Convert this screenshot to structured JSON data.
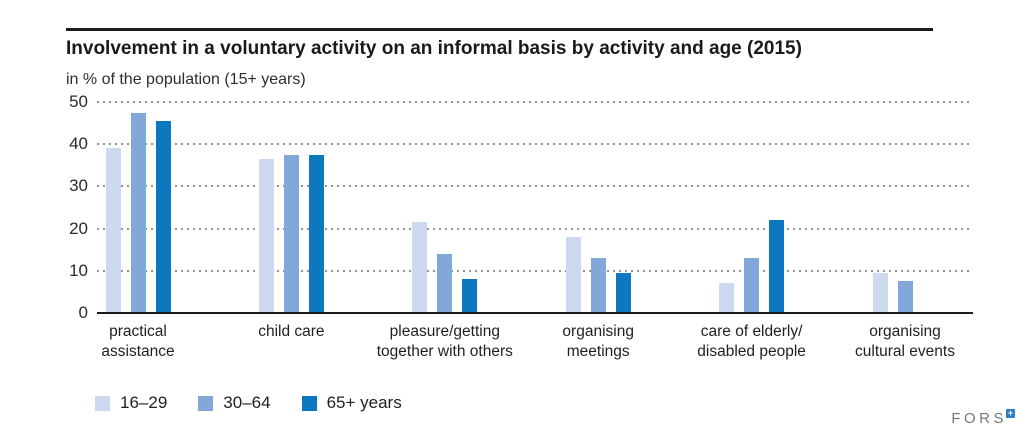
{
  "header": {
    "title": "Involvement in a voluntary activity on an informal basis by activity and age (2015)",
    "subtitle": "in % of the population (15+ years)"
  },
  "chart_data": {
    "type": "bar",
    "title": "Involvement in a voluntary activity on an informal basis by activity and age (2015)",
    "ylabel": "in % of the population (15+ years)",
    "xlabel": "",
    "ylim": [
      0,
      50
    ],
    "yticks": [
      0,
      10,
      20,
      30,
      40,
      50
    ],
    "grid": "horizontal-dotted",
    "legend_position": "bottom-left",
    "categories": [
      "practical\nassistance",
      "child care",
      "pleasure/getting\ntogether with others",
      "organising\nmeetings",
      "care of elderly/\ndisabled people",
      "organising\ncultural events"
    ],
    "series": [
      {
        "name": "16–29",
        "color": "#cdd9ef",
        "values": [
          39,
          36.5,
          21.5,
          18,
          7,
          9.5
        ]
      },
      {
        "name": "30–64",
        "color": "#82a7d9",
        "values": [
          47.5,
          37.5,
          14,
          13,
          13,
          7.5
        ]
      },
      {
        "name": "65+ years",
        "color": "#0d78c0",
        "values": [
          45.5,
          37.5,
          8,
          9.5,
          22,
          null
        ]
      }
    ]
  },
  "footer": {
    "logo_text": "FORS",
    "logo_mark": "+",
    "logo_mark_color": "#2b80c4"
  }
}
